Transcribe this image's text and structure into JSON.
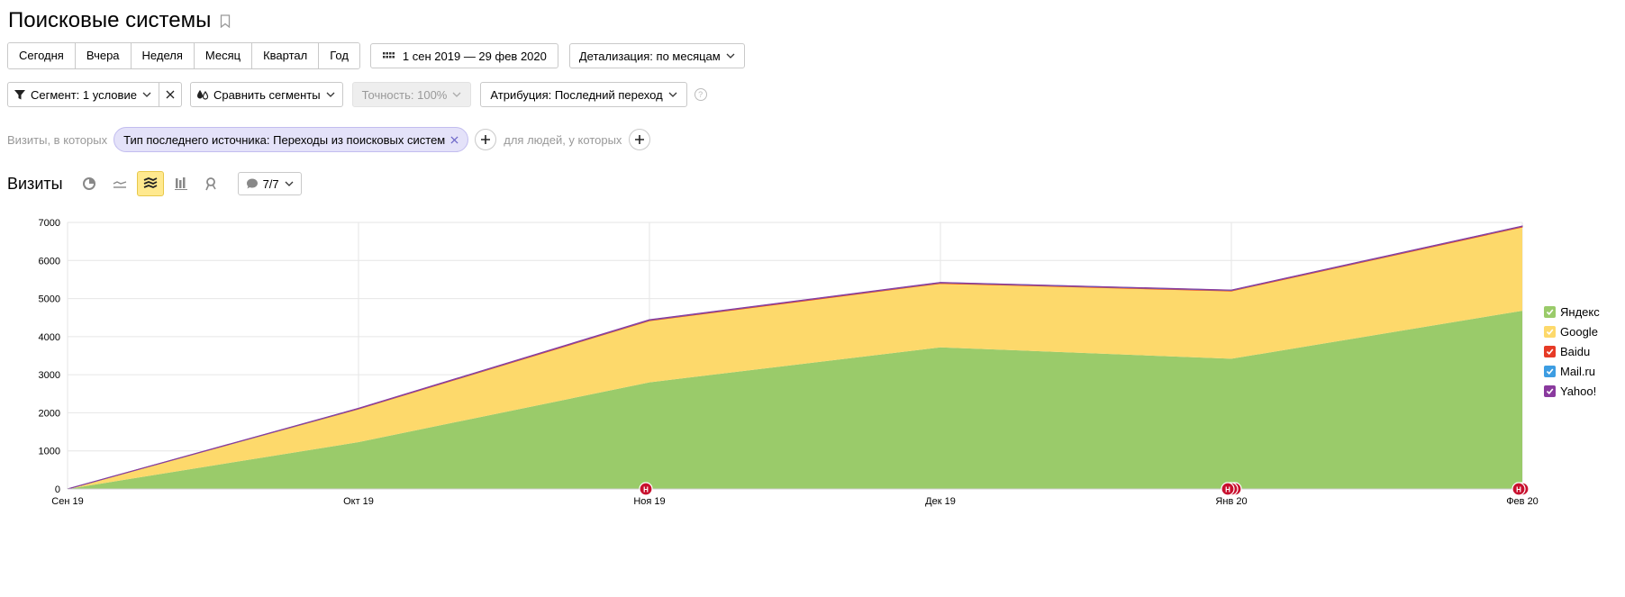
{
  "header": {
    "title": "Поисковые системы"
  },
  "periods": [
    "Сегодня",
    "Вчера",
    "Неделя",
    "Месяц",
    "Квартал",
    "Год"
  ],
  "date_range": "1 сен 2019 — 29 фев 2020",
  "detail": "Детализация: по месяцам",
  "toolbar2": {
    "segment": "Сегмент: 1 условие",
    "compare": "Сравнить сегменты",
    "accuracy": "Точность: 100%",
    "attribution": "Атрибуция: Последний переход",
    "help": "?"
  },
  "filter": {
    "prefix": "Визиты, в которых",
    "chip": "Тип последнего источника: Переходы из поисковых систем",
    "people": "для людей, у которых"
  },
  "section": {
    "title": "Визиты",
    "annotations": "7/7"
  },
  "colors": {
    "yandex": "#9acb6a",
    "google": "#fdd96b",
    "baidu": "#e63b26",
    "mailru": "#3d9de2",
    "yahoo": "#8a3a9e"
  },
  "chart_data": {
    "type": "area",
    "stacked": true,
    "x": [
      "Сен 19",
      "Окт 19",
      "Ноя 19",
      "Дек 19",
      "Янв 20",
      "Фев 20"
    ],
    "ylim": [
      0,
      7000
    ],
    "yticks": [
      "0",
      "1000",
      "2000",
      "3000",
      "4000",
      "5000",
      "6000",
      "7000"
    ],
    "grid": true,
    "legend": "right",
    "series": [
      {
        "name": "Яндекс",
        "values": [
          0,
          1230,
          2800,
          3720,
          3420,
          4680
        ]
      },
      {
        "name": "Google",
        "values": [
          0,
          870,
          1620,
          1680,
          1780,
          2200
        ]
      },
      {
        "name": "Baidu",
        "values": [
          0,
          10,
          15,
          15,
          15,
          15
        ]
      },
      {
        "name": "Mail.ru",
        "values": [
          0,
          5,
          5,
          5,
          5,
          5
        ]
      },
      {
        "name": "Yahoo!",
        "values": [
          0,
          5,
          5,
          5,
          5,
          5
        ]
      }
    ],
    "annotations": [
      {
        "x": "Ноя 19",
        "label": "H",
        "count": 1
      },
      {
        "x": "Янв 20",
        "label": "H",
        "count": 3
      },
      {
        "x": "Фев 20",
        "label": "H",
        "count": 2
      }
    ]
  }
}
